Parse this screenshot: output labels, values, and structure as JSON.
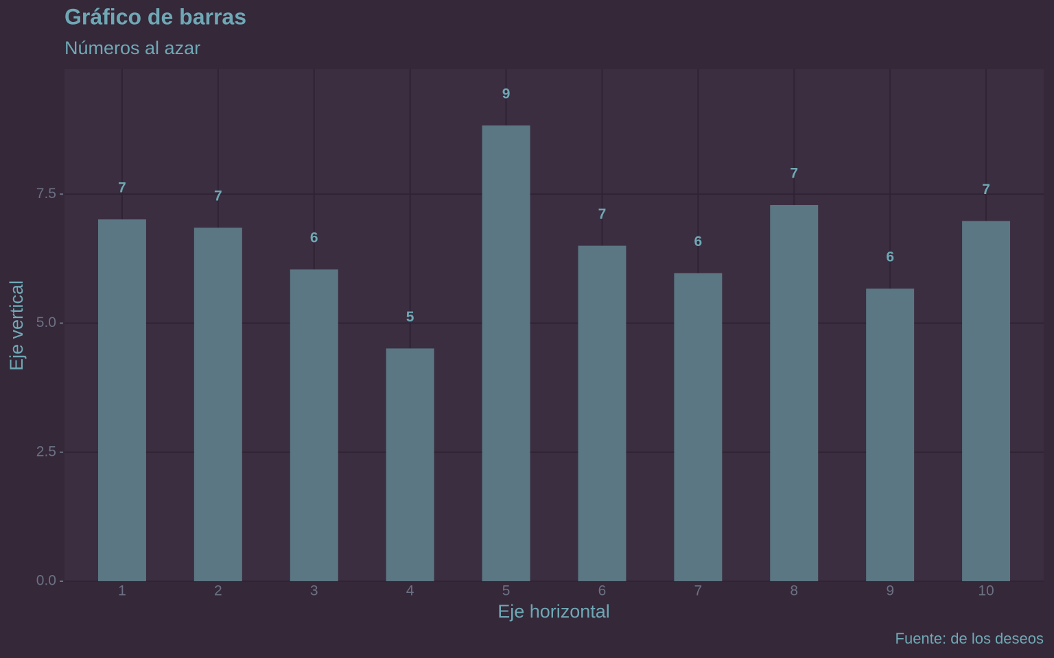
{
  "chart_data": {
    "type": "bar",
    "title": "Gráfico de barras",
    "subtitle": "Números al azar",
    "x_label": "Eje horizontal",
    "y_label": "Eje vertical",
    "caption": "Fuente: de los deseos",
    "categories": [
      "1",
      "2",
      "3",
      "4",
      "5",
      "6",
      "7",
      "8",
      "9",
      "10"
    ],
    "values": [
      7.01,
      6.85,
      6.04,
      4.51,
      8.83,
      6.5,
      5.97,
      7.29,
      5.67,
      6.98
    ],
    "value_labels": [
      "7",
      "7",
      "6",
      "5",
      "9",
      "7",
      "6",
      "7",
      "6",
      "7"
    ],
    "color": "#5b7783",
    "ylim": [
      0,
      9.92
    ],
    "yticks": [
      {
        "value": 0,
        "label": "0.0"
      },
      {
        "value": 2.5,
        "label": "2.5"
      },
      {
        "value": 5,
        "label": "5.0"
      },
      {
        "value": 7.5,
        "label": "7.5"
      }
    ],
    "grid": true
  }
}
